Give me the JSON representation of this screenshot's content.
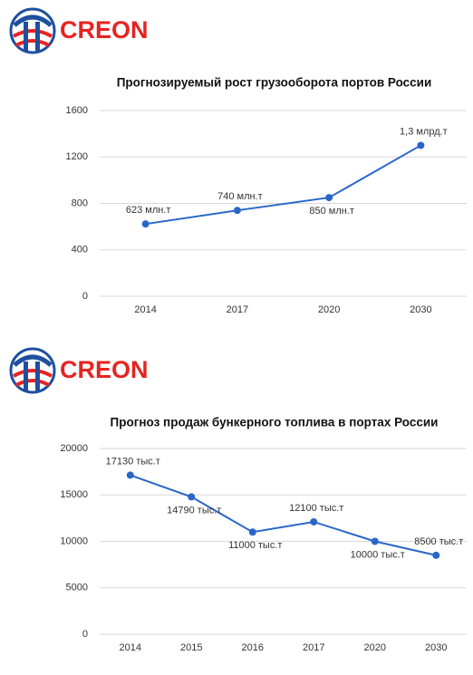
{
  "logos": [
    "CREON",
    "CREON"
  ],
  "chart_data": [
    {
      "type": "line",
      "title": "Прогнозируемый рост грузооборота портов России",
      "categories": [
        "2014",
        "2017",
        "2020",
        "2030"
      ],
      "values": [
        623,
        740,
        850,
        1300
      ],
      "value_labels": [
        "623 млн.т",
        "740 млн.т",
        "850 млн.т",
        "1,3 млрд.т"
      ],
      "color": "#2a66c9",
      "ylim": [
        0,
        1600
      ],
      "yticks": [
        0,
        400,
        800,
        1200,
        1600
      ],
      "grid": true
    },
    {
      "type": "line",
      "title": "Прогноз продаж бункерного топлива в портах России",
      "categories": [
        "2014",
        "2015",
        "2016",
        "2017",
        "2020",
        "2030"
      ],
      "values": [
        17130,
        14790,
        11000,
        12100,
        10000,
        8500
      ],
      "value_labels": [
        "17130 тыс.т",
        "14790 тыс.т",
        "11000 тыс.т",
        "12100 тыс.т",
        "10000 тыс.т",
        "8500 тыс.т"
      ],
      "color": "#2a66c9",
      "ylim": [
        0,
        20000
      ],
      "yticks": [
        0,
        5000,
        10000,
        15000,
        20000
      ],
      "grid": true
    }
  ]
}
